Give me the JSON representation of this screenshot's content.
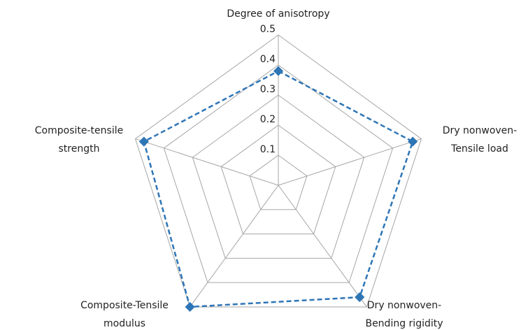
{
  "chart_data": {
    "type": "radar",
    "categories": [
      [
        "Degree of anisotropy"
      ],
      [
        "Dry nonwoven-",
        "Tensile load"
      ],
      [
        "Dry nonwoven-",
        "Bending rigidity"
      ],
      [
        "Composite-Tensile",
        "modulus"
      ],
      [
        "Composite-tensile",
        "strength"
      ]
    ],
    "series": [
      {
        "color": "#2e75b6",
        "values": [
          0.38,
          0.47,
          0.46,
          0.5,
          0.47
        ]
      }
    ],
    "ylim": [
      0,
      0.5
    ],
    "yticks": [
      0.1,
      0.2,
      0.3,
      0.4,
      0.5
    ],
    "grid": true
  }
}
